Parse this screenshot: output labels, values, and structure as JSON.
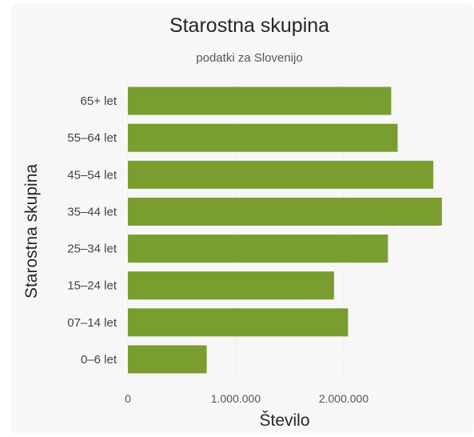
{
  "chart_data": {
    "type": "bar",
    "orientation": "horizontal",
    "title": "Starostna skupina",
    "subtitle": "podatki za Slovenijo",
    "xlabel": "Število",
    "ylabel": "Starostna skupina",
    "categories": [
      "65+ let",
      "55–64 let",
      "45–54 let",
      "35–44 let",
      "25–34 let",
      "15–24 let",
      "07–14 let",
      "0–6 let"
    ],
    "values": [
      2440000,
      2500000,
      2830000,
      2910000,
      2410000,
      1910000,
      2040000,
      730000
    ],
    "xlim": [
      0,
      3000000
    ],
    "xticks": [
      0,
      1000000,
      2000000
    ],
    "xtick_labels": [
      "0",
      "1.000.000",
      "2.000.000"
    ],
    "grid": true,
    "bar_color": "#799d2e"
  }
}
